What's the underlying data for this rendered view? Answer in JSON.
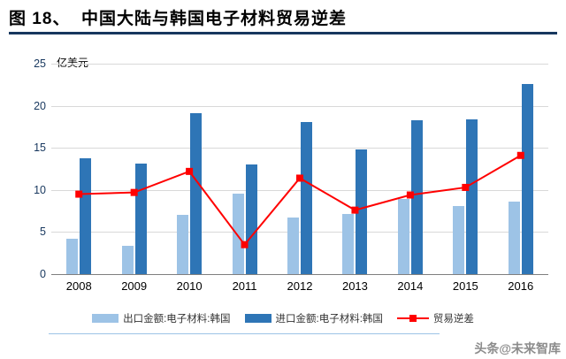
{
  "header": {
    "title": "图 18、  中国大陆与韩国电子材料贸易逆差"
  },
  "watermark": {
    "text": "头条@未来智库"
  },
  "colors": {
    "export_bar": "#9DC3E6",
    "import_bar": "#2E75B6",
    "deficit_line": "#FF0000",
    "title_underline": "#17375E",
    "gridline": "#D9D9D9"
  },
  "chart_data": {
    "type": "bar",
    "subtype": "grouped bars with line overlay",
    "title": "图 18、 中国大陆与韩国电子材料贸易逆差",
    "unit_label": "亿美元",
    "xlabel": "",
    "ylabel": "亿美元",
    "ylim": [
      0,
      25
    ],
    "yticks": [
      0,
      5,
      10,
      15,
      20,
      25
    ],
    "grid": true,
    "legend_position": "bottom",
    "categories": [
      "2008",
      "2009",
      "2010",
      "2011",
      "2012",
      "2013",
      "2014",
      "2015",
      "2016"
    ],
    "series": [
      {
        "name": "出口金额:电子材料:韩国",
        "type": "bar",
        "color": "#9DC3E6",
        "values": [
          4.2,
          3.4,
          7.0,
          9.6,
          6.7,
          7.1,
          8.9,
          8.1,
          8.6
        ]
      },
      {
        "name": "进口金额:电子材料:韩国",
        "type": "bar",
        "color": "#2E75B6",
        "values": [
          13.8,
          13.1,
          19.1,
          13.0,
          18.1,
          14.8,
          18.3,
          18.4,
          22.6
        ]
      },
      {
        "name": "贸易逆差",
        "type": "line",
        "color": "#FF0000",
        "values": [
          9.5,
          9.7,
          12.2,
          3.5,
          11.4,
          7.6,
          9.4,
          10.3,
          14.1
        ]
      }
    ]
  }
}
